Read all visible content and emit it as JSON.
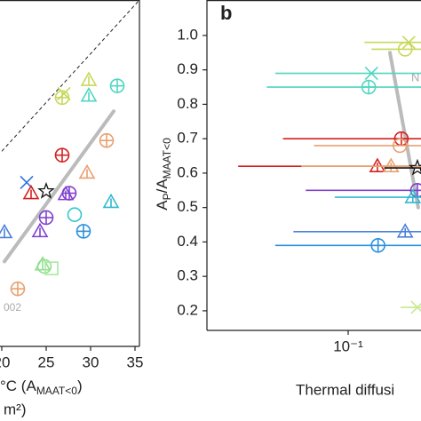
{
  "chart_data": [
    {
      "type": "scatter",
      "xlim": [
        20,
        35.5
      ],
      "ylim": [
        0,
        35.5
      ],
      "xticks": [
        20,
        25,
        30,
        35
      ],
      "xlabel": [
        "°C (A",
        "MAAT<0",
        ")"
      ],
      "xlabel2": "m²)",
      "annotation": "002",
      "diagonal": true,
      "fit": {
        "x": [
          20.3,
          32.6
        ],
        "y": [
          8.7,
          24.1
        ],
        "color": "#bbbbbb"
      },
      "points": [
        {
          "x": 29.8,
          "y": 27.3,
          "color": "#c8d85a",
          "marker": "triangle"
        },
        {
          "x": 26.8,
          "y": 25.5,
          "color": "#c8d85a",
          "marker": "circleplus"
        },
        {
          "x": 27.0,
          "y": 25.9,
          "color": "#c8d85a",
          "marker": "cross"
        },
        {
          "x": 33.0,
          "y": 26.7,
          "color": "#4fd6c0",
          "marker": "circleplus"
        },
        {
          "x": 29.8,
          "y": 25.7,
          "color": "#4fd6c0",
          "marker": "triangle"
        },
        {
          "x": 31.8,
          "y": 21.1,
          "color": "#e8a070",
          "marker": "circleplus"
        },
        {
          "x": 26.8,
          "y": 19.6,
          "color": "#d42020",
          "marker": "circleplus"
        },
        {
          "x": 29.6,
          "y": 17.8,
          "color": "#e8a070",
          "marker": "triangle"
        },
        {
          "x": 22.8,
          "y": 16.8,
          "color": "#3070e0",
          "marker": "cross"
        },
        {
          "x": 25.0,
          "y": 15.9,
          "color": "#111111",
          "marker": "star"
        },
        {
          "x": 23.3,
          "y": 15.7,
          "color": "#d42020",
          "marker": "triangle"
        },
        {
          "x": 27.6,
          "y": 15.7,
          "color": "#8040d0",
          "marker": "circleplus"
        },
        {
          "x": 27.2,
          "y": 15.6,
          "color": "#8040d0",
          "marker": "triangle"
        },
        {
          "x": 32.3,
          "y": 14.8,
          "color": "#30b8d0",
          "marker": "triangle"
        },
        {
          "x": 20.3,
          "y": 11.7,
          "color": "#4a80d8",
          "marker": "triangle"
        },
        {
          "x": 25.0,
          "y": 13.2,
          "color": "#8040d0",
          "marker": "circleplus"
        },
        {
          "x": 24.3,
          "y": 11.8,
          "color": "#8040d0",
          "marker": "triangle"
        },
        {
          "x": 28.2,
          "y": 13.5,
          "color": "#30c8d0",
          "marker": "circle"
        },
        {
          "x": 29.2,
          "y": 11.8,
          "color": "#2890e0",
          "marker": "circleplus"
        },
        {
          "x": 24.6,
          "y": 8.4,
          "color": "#90e090",
          "marker": "triangle"
        },
        {
          "x": 24.8,
          "y": 8.2,
          "color": "#90e090",
          "marker": "circle"
        },
        {
          "x": 25.6,
          "y": 8.0,
          "color": "#a8e8a0",
          "marker": "square"
        },
        {
          "x": 21.8,
          "y": 5.9,
          "color": "#e8a070",
          "marker": "circleplus"
        }
      ]
    },
    {
      "type": "errorscatter",
      "panel": "b",
      "log_x": true,
      "xlim": [
        0.0204,
        0.227
      ],
      "ylim": [
        0.143,
        1.103
      ],
      "xticks": [
        {
          "value": 0.1,
          "label": "10⁻¹"
        }
      ],
      "yticks": [
        {
          "value": 0.2,
          "label": "0.2"
        },
        {
          "value": 0.3,
          "label": "0.3"
        },
        {
          "value": 0.4,
          "label": "0.4"
        },
        {
          "value": 0.5,
          "label": "0.5"
        },
        {
          "value": 0.6,
          "label": "0.6"
        },
        {
          "value": 0.7,
          "label": "0.7"
        },
        {
          "value": 0.8,
          "label": "0.8"
        },
        {
          "value": 0.9,
          "label": "0.9"
        },
        {
          "value": 1.0,
          "label": "1.0"
        }
      ],
      "ylabel": [
        "A",
        "P",
        "/A",
        "MAAT<0"
      ],
      "xlabel": "Thermal diffusi",
      "annotation": "N",
      "fit": {
        "x": [
          0.16,
          0.22
        ],
        "y": [
          0.95,
          0.5
        ],
        "color": "#bbbbbb"
      },
      "points": [
        {
          "x": 0.198,
          "y": 0.98,
          "x_lo": 0.12,
          "x_hi": 0.227,
          "color": "#c8d85a",
          "marker": "cross"
        },
        {
          "x": 0.19,
          "y": 0.96,
          "x_lo": 0.13,
          "x_hi": 0.227,
          "color": "#c8d85a",
          "marker": "circle"
        },
        {
          "x": 0.13,
          "y": 0.89,
          "x_lo": 0.044,
          "x_hi": 0.227,
          "color": "#4fd6c0",
          "marker": "cross"
        },
        {
          "x": 0.126,
          "y": 0.85,
          "x_lo": 0.04,
          "x_hi": 0.227,
          "color": "#4fd6c0",
          "marker": "circleplus"
        },
        {
          "x": 0.182,
          "y": 0.7,
          "x_lo": 0.048,
          "x_hi": 0.227,
          "color": "#d42020",
          "marker": "circleplus"
        },
        {
          "x": 0.179,
          "y": 0.68,
          "x_lo": 0.068,
          "x_hi": 0.227,
          "color": "#e8a070",
          "marker": "circle"
        },
        {
          "x": 0.139,
          "y": 0.62,
          "x_lo": 0.029,
          "x_hi": 0.227,
          "color": "#d42020",
          "marker": "triangle"
        },
        {
          "x": 0.162,
          "y": 0.62,
          "x_lo": 0.059,
          "x_hi": 0.227,
          "color": "#e8a070",
          "marker": "triangle"
        },
        {
          "x": 0.218,
          "y": 0.615,
          "x_lo": 0.15,
          "x_hi": 0.227,
          "color": "#111111",
          "marker": "star"
        },
        {
          "x": 0.218,
          "y": 0.55,
          "x_lo": 0.062,
          "x_hi": 0.227,
          "color": "#8040d0",
          "marker": "circleplus"
        },
        {
          "x": 0.207,
          "y": 0.53,
          "x_lo": 0.086,
          "x_hi": 0.227,
          "color": "#30b8d0",
          "marker": "triangle"
        },
        {
          "x": 0.14,
          "y": 0.39,
          "x_lo": 0.044,
          "x_hi": 0.227,
          "color": "#2890e0",
          "marker": "circleplus"
        },
        {
          "x": 0.19,
          "y": 0.43,
          "x_lo": 0.054,
          "x_hi": 0.227,
          "color": "#4a80d8",
          "marker": "triangle"
        },
        {
          "x": 0.218,
          "y": 0.21,
          "x_lo": 0.18,
          "x_hi": 0.227,
          "color": "#c8e890",
          "marker": "cross"
        }
      ]
    }
  ]
}
